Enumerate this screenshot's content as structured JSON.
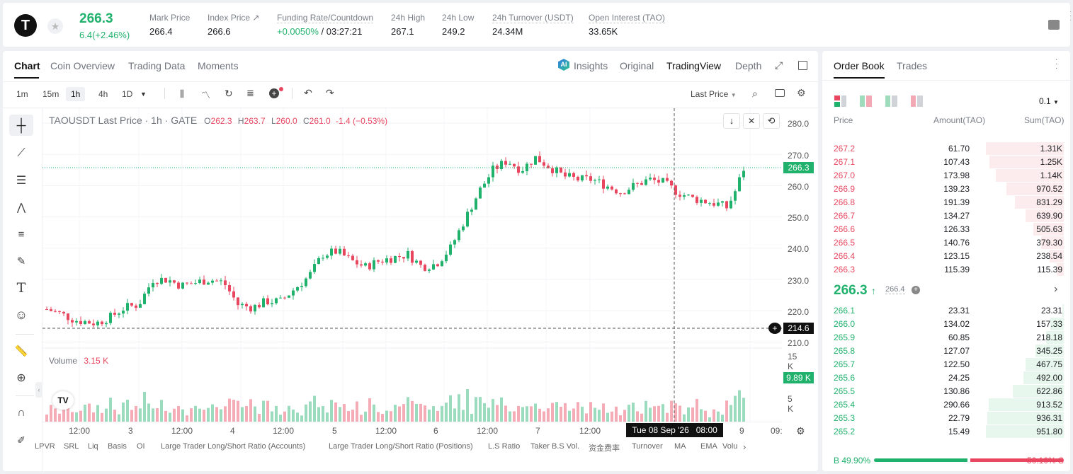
{
  "ticker": {
    "logo_letter": "T",
    "last_price": "266.3",
    "change": "6.4(+2.46%)",
    "stats": [
      {
        "label": "Mark Price",
        "value": "266.4"
      },
      {
        "label": "Index Price ↗",
        "value": "266.6"
      },
      {
        "label": "Funding Rate/Countdown",
        "value_green": "+0.0050%",
        "value": " / 03:27:21"
      },
      {
        "label": "24h High",
        "value": "267.1"
      },
      {
        "label": "24h Low",
        "value": "249.2"
      },
      {
        "label": "24h Turnover (USDT)",
        "value": "24.34M"
      },
      {
        "label": "Open Interest (TAO)",
        "value": "33.65K"
      }
    ]
  },
  "chart_tabs": [
    "Chart",
    "Coin Overview",
    "Trading Data",
    "Moments"
  ],
  "view_modes": {
    "insights": "Insights",
    "original": "Original",
    "tradingview": "TradingView",
    "depth": "Depth"
  },
  "timeframes": [
    "1m",
    "15m",
    "1h",
    "4h",
    "1D"
  ],
  "price_type": "Last Price",
  "chart_header": {
    "symbol": "TAOUSDT Last Price · 1h · GATE",
    "o_label": "O",
    "o": "262.3",
    "h_label": "H",
    "h": "263.7",
    "l_label": "L",
    "l": "260.0",
    "c_label": "C",
    "c": "261.0",
    "change": "-1.4 (−0.53%)"
  },
  "volume_header": {
    "label": "Volume",
    "value": "3.15 K"
  },
  "price_axis": [
    "280.0",
    "270.0",
    "260.0",
    "250.0",
    "240.0",
    "230.0",
    "220.0",
    "210.0"
  ],
  "volume_axis": [
    "15 K",
    "5 K"
  ],
  "last_price_tag": "266.3",
  "crosshair_price_tag": "214.6",
  "volume_tag": "9.89 K",
  "time_axis": [
    "12:00",
    "3",
    "12:00",
    "4",
    "12:00",
    "5",
    "12:00",
    "6",
    "12:00",
    "7",
    "12:00",
    "9",
    "09:"
  ],
  "crosshair_time": "Tue 08 Sep '26   08:00",
  "indicators": [
    "LPVR",
    "SRL",
    "Liq",
    "Basis",
    "OI",
    "Large Trader Long/Short Ratio (Accounts)",
    "Large Trader Long/Short Ratio (Positions)",
    "L.S Ratio",
    "Taker B.S Vol.",
    "资金费率",
    "Turnover",
    "MA",
    "EMA",
    "Volu"
  ],
  "orderbook": {
    "tabs": [
      "Order Book",
      "Trades"
    ],
    "precision": "0.1",
    "headers": {
      "price": "Price",
      "amount": "Amount(TAO)",
      "sum": "Sum(TAO)"
    },
    "asks": [
      {
        "price": "267.2",
        "amount": "61.70",
        "sum": "1.31K",
        "depth": 1.0
      },
      {
        "price": "267.1",
        "amount": "107.43",
        "sum": "1.25K",
        "depth": 0.95
      },
      {
        "price": "267.0",
        "amount": "173.98",
        "sum": "1.14K",
        "depth": 0.87
      },
      {
        "price": "266.9",
        "amount": "139.23",
        "sum": "970.52",
        "depth": 0.74
      },
      {
        "price": "266.8",
        "amount": "191.39",
        "sum": "831.29",
        "depth": 0.63
      },
      {
        "price": "266.7",
        "amount": "134.27",
        "sum": "639.90",
        "depth": 0.49
      },
      {
        "price": "266.6",
        "amount": "126.33",
        "sum": "505.63",
        "depth": 0.39
      },
      {
        "price": "266.5",
        "amount": "140.76",
        "sum": "379.30",
        "depth": 0.29
      },
      {
        "price": "266.4",
        "amount": "123.15",
        "sum": "238.54",
        "depth": 0.18
      },
      {
        "price": "266.3",
        "amount": "115.39",
        "sum": "115.39",
        "depth": 0.09
      }
    ],
    "mid_price": "266.3",
    "mid_mark": "266.4",
    "bids": [
      {
        "price": "266.1",
        "amount": "23.31",
        "sum": "23.31",
        "depth": 0.02
      },
      {
        "price": "266.0",
        "amount": "134.02",
        "sum": "157.33",
        "depth": 0.17
      },
      {
        "price": "265.9",
        "amount": "60.85",
        "sum": "218.18",
        "depth": 0.23
      },
      {
        "price": "265.8",
        "amount": "127.07",
        "sum": "345.25",
        "depth": 0.36
      },
      {
        "price": "265.7",
        "amount": "122.50",
        "sum": "467.75",
        "depth": 0.49
      },
      {
        "price": "265.6",
        "amount": "24.25",
        "sum": "492.00",
        "depth": 0.52
      },
      {
        "price": "265.5",
        "amount": "130.86",
        "sum": "622.86",
        "depth": 0.65
      },
      {
        "price": "265.4",
        "amount": "290.66",
        "sum": "913.52",
        "depth": 0.96
      },
      {
        "price": "265.3",
        "amount": "22.79",
        "sum": "936.31",
        "depth": 0.98
      },
      {
        "price": "265.2",
        "amount": "15.49",
        "sum": "951.80",
        "depth": 1.0
      }
    ],
    "buy_ratio": "B 49.90%",
    "sell_ratio": "50.10% S",
    "buy_fraction": 0.499
  },
  "colors": {
    "up": "#20b26c",
    "down": "#e8475f",
    "ask_bg": "#fdeced",
    "bid_bg": "#e8f7ee"
  }
}
